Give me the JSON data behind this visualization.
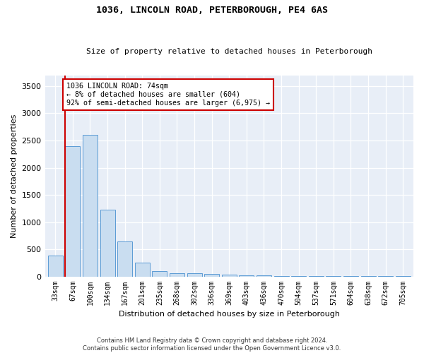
{
  "title": "1036, LINCOLN ROAD, PETERBOROUGH, PE4 6AS",
  "subtitle": "Size of property relative to detached houses in Peterborough",
  "xlabel": "Distribution of detached houses by size in Peterborough",
  "ylabel": "Number of detached properties",
  "categories": [
    "33sqm",
    "67sqm",
    "100sqm",
    "134sqm",
    "167sqm",
    "201sqm",
    "235sqm",
    "268sqm",
    "302sqm",
    "336sqm",
    "369sqm",
    "403sqm",
    "436sqm",
    "470sqm",
    "504sqm",
    "537sqm",
    "571sqm",
    "604sqm",
    "638sqm",
    "672sqm",
    "705sqm"
  ],
  "values": [
    390,
    2400,
    2600,
    1230,
    640,
    255,
    95,
    65,
    60,
    45,
    30,
    20,
    15,
    10,
    8,
    5,
    3,
    2,
    1,
    1,
    1
  ],
  "bar_color": "#c9ddf0",
  "bar_edge_color": "#5b9bd5",
  "vline_bar_index": 1,
  "vline_color": "#cc0000",
  "annotation_text": "1036 LINCOLN ROAD: 74sqm\n← 8% of detached houses are smaller (604)\n92% of semi-detached houses are larger (6,975) →",
  "annotation_box_color": "#ffffff",
  "annotation_box_edge_color": "#cc0000",
  "ylim": [
    0,
    3700
  ],
  "yticks": [
    0,
    500,
    1000,
    1500,
    2000,
    2500,
    3000,
    3500
  ],
  "background_color": "#e8eef7",
  "grid_color": "#ffffff",
  "footer_line1": "Contains HM Land Registry data © Crown copyright and database right 2024.",
  "footer_line2": "Contains public sector information licensed under the Open Government Licence v3.0."
}
